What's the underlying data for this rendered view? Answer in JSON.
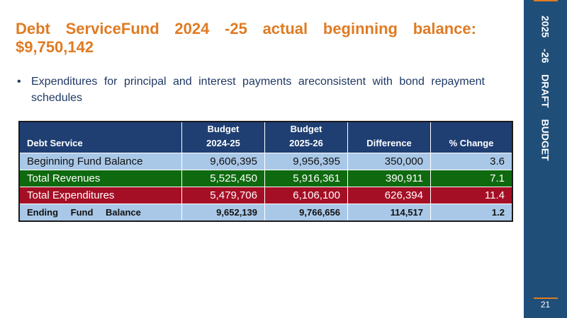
{
  "title": {
    "line1_parts": [
      "Debt",
      "ServiceFund",
      "2024",
      "-25",
      "actual",
      "beginning",
      "balance:"
    ],
    "line2": "$9,750,142"
  },
  "bullet": {
    "text": "Expenditures for principal and interest payments areconsistent with bond repayment schedules"
  },
  "table": {
    "headers": [
      {
        "line1": "",
        "line2": "Debt   Service"
      },
      {
        "line1": "Budget",
        "line2": "2024-25"
      },
      {
        "line1": "Budget",
        "line2": "2025-26"
      },
      {
        "line1": "",
        "line2": "Difference"
      },
      {
        "line1": "",
        "line2": "%  Change"
      }
    ],
    "rows": [
      {
        "label": "Beginning  Fund  Balance",
        "b2425": "9,606,395",
        "b2526": "9,956,395",
        "diff": "350,000",
        "pct": "3.6"
      },
      {
        "label": "Total Revenues",
        "b2425": "5,525,450",
        "b2526": "5,916,361",
        "diff": "390,911",
        "pct": "7.1"
      },
      {
        "label": "Total Expenditures",
        "b2425": "5,479,706",
        "b2526": "6,106,100",
        "diff": "626,394",
        "pct": "11.4"
      },
      {
        "label": "Ending Fund Balance",
        "b2425": "9,652,139",
        "b2526": "9,766,656",
        "diff": "114,517",
        "pct": "1.2"
      }
    ],
    "colors": {
      "header": "#1F3F73",
      "light_blue": "#A9C8E8",
      "green": "#0F6A0F",
      "red": "#A50F25"
    }
  },
  "sidebar": {
    "label": "2025 -26 DRAFT BUDGET",
    "page_number": "21",
    "bg_color": "#1F4E79",
    "accent_color": "#E07B22"
  }
}
